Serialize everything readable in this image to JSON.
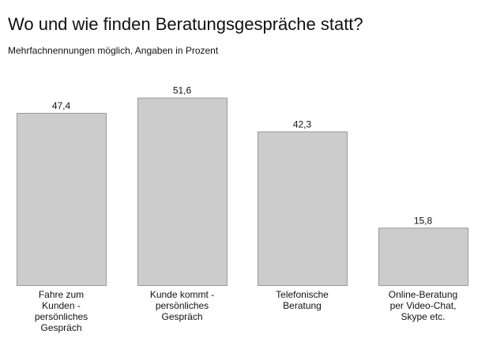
{
  "chart_data": {
    "type": "bar",
    "title": "Wo und wie finden Beratungsgespräche statt?",
    "subtitle": "Mehrfachnennungen möglich, Angaben in Prozent",
    "categories": [
      [
        "Fahre zum",
        "Kunden -",
        "persönliches",
        "Gespräch"
      ],
      [
        "Kunde kommt -",
        "persönliches",
        "Gespräch"
      ],
      [
        "Telefonische",
        "Beratung"
      ],
      [
        "Online-Beratung",
        "per Video-Chat,",
        "Skype etc."
      ]
    ],
    "values": [
      47.4,
      51.6,
      42.3,
      15.8
    ],
    "value_labels": [
      "47,4",
      "51,6",
      "42,3",
      "15,8"
    ],
    "bar_color": "#cccccc",
    "bar_border": "#999999"
  }
}
